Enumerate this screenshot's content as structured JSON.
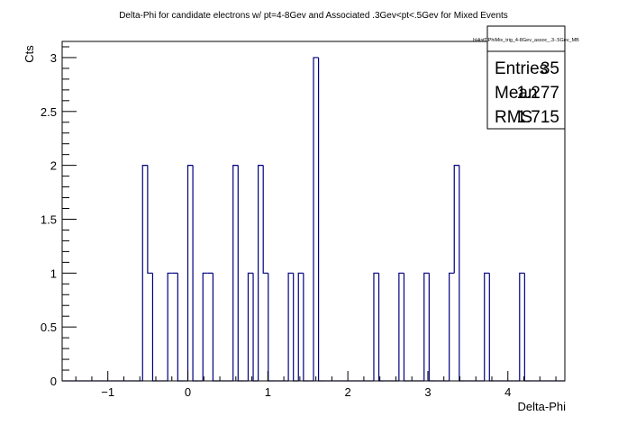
{
  "chart_data": {
    "type": "bar",
    "style": "step-histogram",
    "title": "Delta-Phi for candidate electrons w/ pt=4-8Gev and Associated .3Gev<pt<.5Gev for Mixed Events",
    "xlabel": "Delta-Phi",
    "ylabel": "Cts",
    "xlim": [
      -1.571,
      4.712
    ],
    "ylim": [
      0,
      3.15
    ],
    "x_ticks": [
      -1,
      0,
      1,
      2,
      3,
      4
    ],
    "y_ticks": [
      0,
      0.5,
      1,
      1.5,
      2,
      2.5,
      3
    ],
    "y_tick_labels": [
      "0",
      "0.5",
      "1",
      "1.5",
      "2",
      "2.5",
      "3"
    ],
    "bins": 100,
    "series": [
      {
        "values": [
          0,
          0,
          0,
          0,
          0,
          0,
          0,
          0,
          0,
          0,
          0,
          0,
          0,
          0,
          0,
          0,
          2,
          1,
          0,
          0,
          0,
          1,
          1,
          0,
          0,
          2,
          0,
          0,
          1,
          1,
          0,
          0,
          0,
          0,
          2,
          0,
          0,
          1,
          0,
          2,
          1,
          0,
          0,
          0,
          0,
          1,
          0,
          1,
          0,
          0,
          3,
          0,
          0,
          0,
          0,
          0,
          0,
          0,
          0,
          0,
          0,
          0,
          1,
          0,
          0,
          0,
          0,
          1,
          0,
          0,
          0,
          0,
          1,
          0,
          0,
          0,
          0,
          1,
          2,
          0,
          0,
          0,
          0,
          0,
          1,
          0,
          0,
          0,
          0,
          0,
          0,
          1,
          0,
          0,
          0,
          0,
          0,
          0,
          0,
          0
        ]
      }
    ],
    "color": "#000080",
    "stats_box": {
      "name": "hHistDPhiMix_trig_4-8Gev_assoc_.3-.5Gev_MB",
      "rows": [
        {
          "label": "Entries",
          "value": "35"
        },
        {
          "label": "Mean",
          "value": "1.277"
        },
        {
          "label": "RMS",
          "value": "1.715"
        }
      ]
    }
  }
}
